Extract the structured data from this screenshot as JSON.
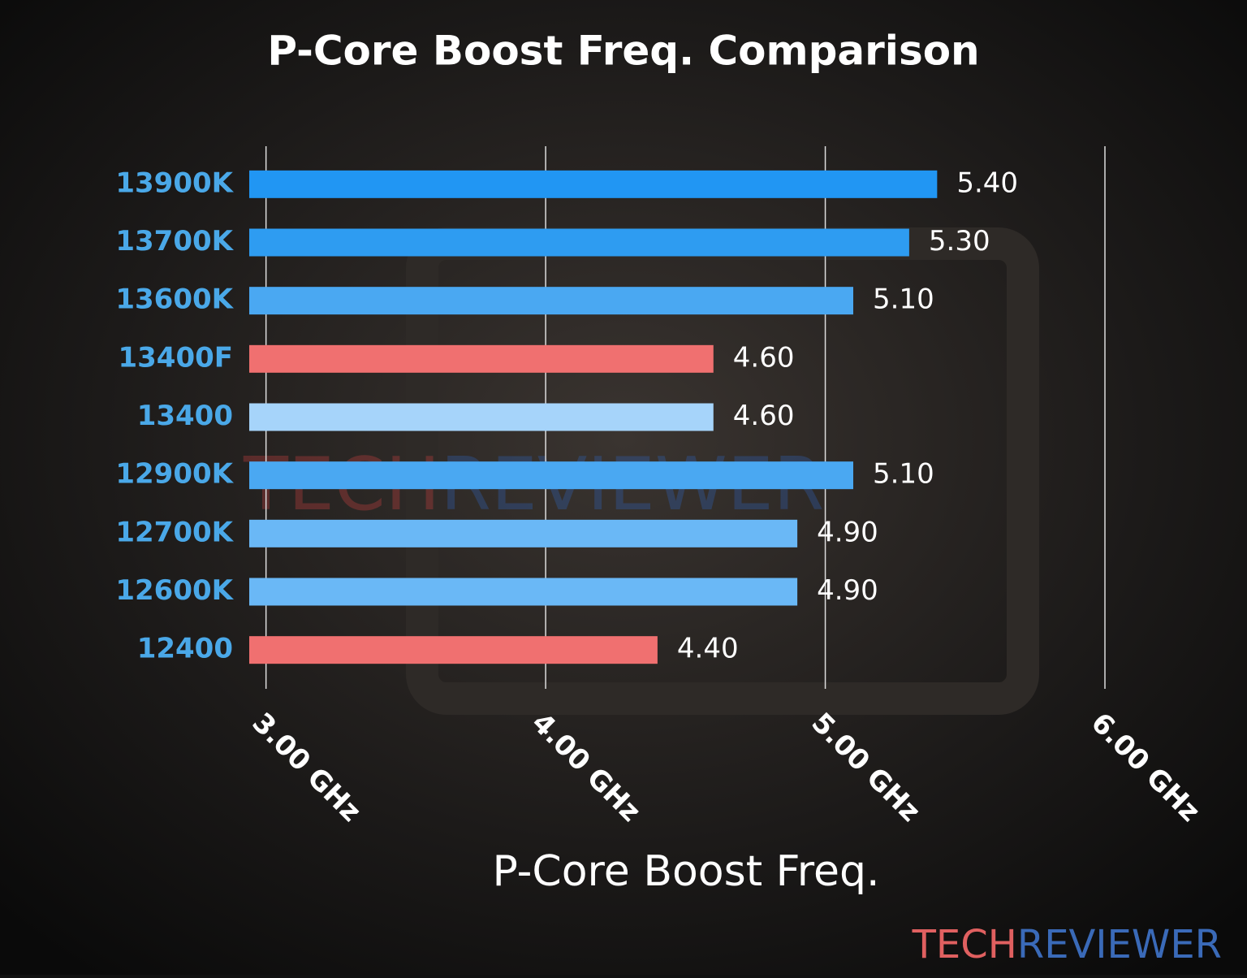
{
  "chart_data": {
    "type": "hbar",
    "title": "P-Core Boost Freq. Comparison",
    "x_label": "P-Core Boost Freq.",
    "categories": [
      "13900K",
      "13700K",
      "13600K",
      "13400F",
      "13400",
      "12900K",
      "12700K",
      "12600K",
      "12400"
    ],
    "values": [
      5.4,
      5.3,
      5.1,
      4.6,
      4.6,
      5.1,
      4.9,
      4.9,
      4.4
    ],
    "value_labels": [
      "5.40",
      "5.30",
      "5.10",
      "4.60",
      "4.60",
      "5.10",
      "4.90",
      "4.90",
      "4.40"
    ],
    "colors": [
      "#2196f3",
      "#2e9cf1",
      "#4aa8f2",
      "#f07070",
      "#a6d4fa",
      "#4aa8f2",
      "#6ab8f6",
      "#6ab8f6",
      "#f07070"
    ],
    "xlim": [
      2.94,
      6.0
    ],
    "xticks": [
      {
        "value": 3,
        "label": "3.00 GHz"
      },
      {
        "value": 4,
        "label": "4.00 GHz"
      },
      {
        "value": 5,
        "label": "5.00 GHz"
      },
      {
        "value": 6,
        "label": "6.00 GHz"
      }
    ],
    "grid": true,
    "watermark": [
      "TECH",
      "REVIEWER"
    ]
  }
}
